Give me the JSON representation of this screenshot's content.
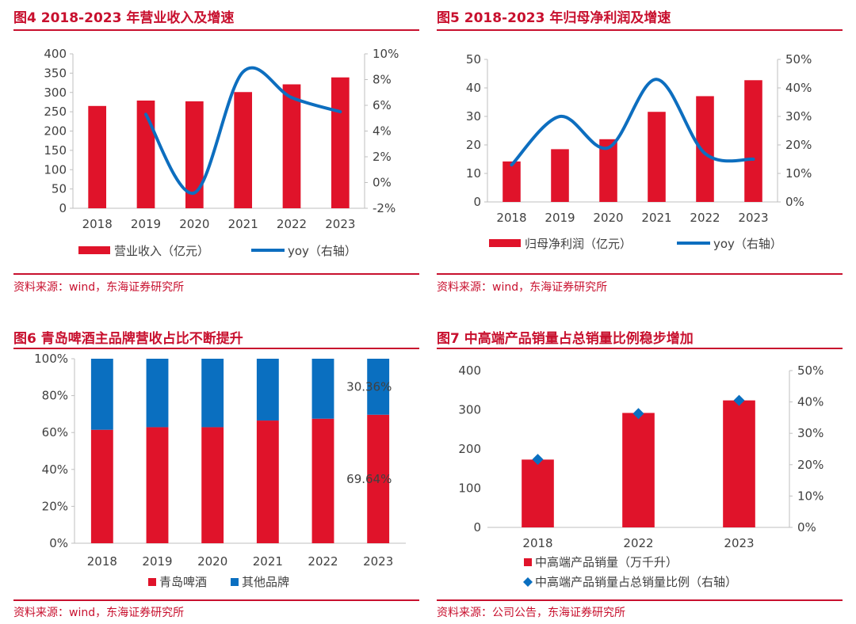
{
  "colors": {
    "accent": "#c8102e",
    "bar": "#e0132a",
    "line": "#0d6ebf",
    "other": "#0a6fc0",
    "axis": "#bfbfbf"
  },
  "chart_data": [
    {
      "id": "fig4",
      "type": "bar+line",
      "title": "图4  2018-2023 年营业收入及增速",
      "source": "资料来源：wind，东海证券研究所",
      "categories": [
        "2018",
        "2019",
        "2020",
        "2021",
        "2022",
        "2023"
      ],
      "ylim": [
        0,
        400
      ],
      "y2lim": [
        -2,
        10
      ],
      "yticks": [
        "0",
        "50",
        "100",
        "150",
        "200",
        "250",
        "300",
        "350",
        "400"
      ],
      "y2ticks": [
        "-2%",
        "0%",
        "2%",
        "4%",
        "6%",
        "8%",
        "10%"
      ],
      "series": [
        {
          "name": "营业收入（亿元）",
          "kind": "bar",
          "axis": "left",
          "values": [
            265,
            279,
            277,
            301,
            321,
            339
          ]
        },
        {
          "name": "yoy（右轴）",
          "kind": "smooth-line",
          "axis": "right",
          "values": [
            null,
            5.3,
            -0.8,
            8.6,
            6.6,
            5.5
          ]
        }
      ]
    },
    {
      "id": "fig5",
      "type": "bar+line",
      "title": "图5  2018-2023 年归母净利润及增速",
      "source": "资料来源：wind，东海证券研究所",
      "categories": [
        "2018",
        "2019",
        "2020",
        "2021",
        "2022",
        "2023"
      ],
      "ylim": [
        0,
        50
      ],
      "y2lim": [
        0,
        50
      ],
      "yticks": [
        "0",
        "10",
        "20",
        "30",
        "40",
        "50"
      ],
      "y2ticks": [
        "0%",
        "10%",
        "20%",
        "30%",
        "40%",
        "50%"
      ],
      "series": [
        {
          "name": "归母净利润（亿元）",
          "kind": "bar",
          "axis": "left",
          "values": [
            14.2,
            18.5,
            22.0,
            31.6,
            37.1,
            42.7
          ]
        },
        {
          "name": "yoy（右轴）",
          "kind": "smooth-line",
          "axis": "right",
          "values": [
            13,
            30,
            19,
            43,
            17,
            15
          ]
        }
      ]
    },
    {
      "id": "fig6",
      "type": "stacked-bar-100",
      "title": "图6  青岛啤酒主品牌营收占比不断提升",
      "source": "资料来源：wind，东海证券研究所",
      "categories": [
        "2018",
        "2019",
        "2020",
        "2021",
        "2022",
        "2023"
      ],
      "ylim": [
        0,
        100
      ],
      "yticks": [
        "0%",
        "20%",
        "40%",
        "60%",
        "80%",
        "100%"
      ],
      "series": [
        {
          "name": "青岛啤酒",
          "values": [
            61.5,
            62.9,
            62.9,
            66.5,
            67.5,
            69.64
          ]
        },
        {
          "name": "其他品牌",
          "values": [
            38.5,
            37.1,
            37.1,
            33.5,
            32.5,
            30.36
          ]
        }
      ],
      "labels": [
        "30.36%",
        "69.64%"
      ]
    },
    {
      "id": "fig7",
      "type": "bar+scatter",
      "title": "图7  中高端产品销量占总销量比例稳步增加",
      "source": "资料来源：公司公告，东海证券研究所",
      "categories": [
        "2018",
        "2022",
        "2023"
      ],
      "ylim": [
        0,
        400
      ],
      "y2lim": [
        0,
        50
      ],
      "yticks": [
        "0",
        "100",
        "200",
        "300",
        "400"
      ],
      "y2ticks": [
        "0%",
        "10%",
        "20%",
        "30%",
        "40%",
        "50%"
      ],
      "series": [
        {
          "name": "中高端产品销量（万千升）",
          "kind": "bar",
          "axis": "left",
          "values": [
            173,
            292,
            324
          ]
        },
        {
          "name": "中高端产品销量占总销量比例（右轴）",
          "kind": "marker",
          "axis": "right",
          "values": [
            21.7,
            36.3,
            40.5
          ]
        }
      ]
    }
  ]
}
